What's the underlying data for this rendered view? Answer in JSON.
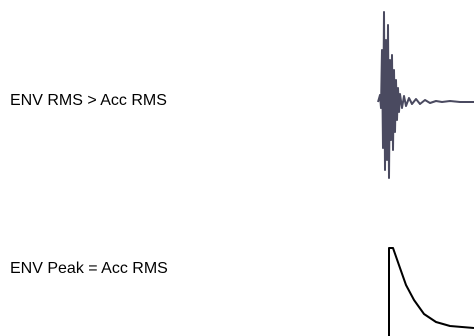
{
  "rows": [
    {
      "label": "ENV RMS > Acc RMS"
    },
    {
      "label": "ENV Peak = Acc RMS"
    }
  ],
  "colors": {
    "waveform": "#4a4a60",
    "envelope": "#000000",
    "text": "#000000"
  }
}
